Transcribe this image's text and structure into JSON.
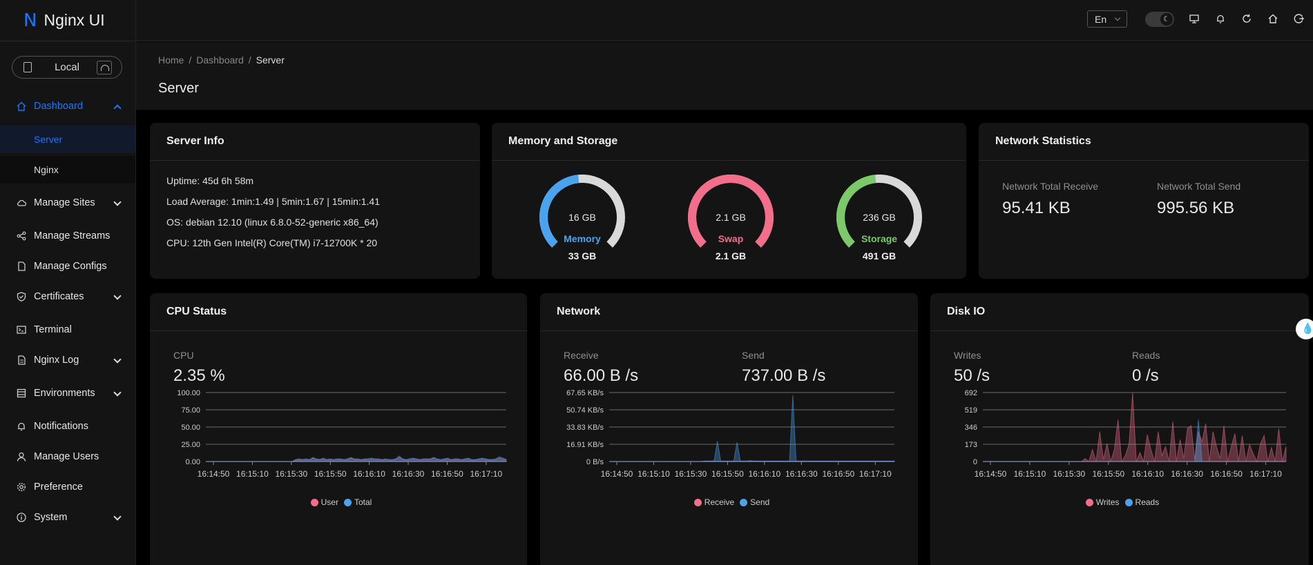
{
  "app": {
    "title": "Nginx UI",
    "logo_letter": "N"
  },
  "sidebar": {
    "env_label": "Local",
    "items": [
      {
        "label": "Dashboard",
        "icon": "home-icon",
        "active": true,
        "expandable": true,
        "open": true
      },
      {
        "label": "Manage Sites",
        "icon": "cloud-icon",
        "expandable": true
      },
      {
        "label": "Manage Streams",
        "icon": "share-icon"
      },
      {
        "label": "Manage Configs",
        "icon": "file-icon"
      },
      {
        "label": "Certificates",
        "icon": "shield-icon",
        "expandable": true
      },
      {
        "label": "Terminal",
        "icon": "terminal-icon"
      },
      {
        "label": "Nginx Log",
        "icon": "log-icon",
        "expandable": true
      },
      {
        "label": "Environments",
        "icon": "database-icon",
        "expandable": true
      },
      {
        "label": "Notifications",
        "icon": "bell-icon"
      },
      {
        "label": "Manage Users",
        "icon": "user-icon"
      },
      {
        "label": "Preference",
        "icon": "gear-icon"
      },
      {
        "label": "System",
        "icon": "info-icon",
        "expandable": true
      }
    ],
    "dashboard_sub": [
      {
        "label": "Server",
        "selected": true
      },
      {
        "label": "Nginx"
      }
    ]
  },
  "header": {
    "language": "En"
  },
  "breadcrumb": {
    "home": "Home",
    "dashboard": "Dashboard",
    "current": "Server",
    "sep": "/"
  },
  "page_title": "Server",
  "server_info": {
    "title": "Server Info",
    "uptime": "Uptime: 45d 6h 58m",
    "load": "Load Average: 1min:1.49 | 5min:1.67 | 15min:1.41",
    "os": "OS: debian 12.10 (linux 6.8.0-52-generic x86_64)",
    "cpu": "CPU: 12th Gen Intel(R) Core(TM) i7-12700K * 20"
  },
  "memory_storage": {
    "title": "Memory and Storage",
    "gauges": [
      {
        "name": "Memory",
        "used": "16 GB",
        "total": "33 GB",
        "percent": 48,
        "color": "#4ba3f0"
      },
      {
        "name": "Swap",
        "used": "2.1 GB",
        "total": "2.1 GB",
        "percent": 100,
        "color": "#f26e8b"
      },
      {
        "name": "Storage",
        "used": "236 GB",
        "total": "491 GB",
        "percent": 48,
        "color": "#7cc96a"
      }
    ]
  },
  "network_stats": {
    "title": "Network Statistics",
    "receive_label": "Network Total Receive",
    "receive_value": "95.41 KB",
    "send_label": "Network Total Send",
    "send_value": "995.56 KB"
  },
  "cpu_card": {
    "title": "CPU Status",
    "label": "CPU",
    "value": "2.35 %",
    "legend": [
      {
        "name": "User",
        "color": "#f26e8b"
      },
      {
        "name": "Total",
        "color": "#4ba3f0"
      }
    ]
  },
  "network_card": {
    "title": "Network",
    "receive_label": "Receive",
    "receive_value": "66.00 B /s",
    "send_label": "Send",
    "send_value": "737.00 B /s",
    "legend": [
      {
        "name": "Receive",
        "color": "#f26e8b"
      },
      {
        "name": "Send",
        "color": "#4ba3f0"
      }
    ]
  },
  "disk_card": {
    "title": "Disk IO",
    "writes_label": "Writes",
    "writes_value": "50 /s",
    "reads_label": "Reads",
    "reads_value": "0 /s",
    "legend": [
      {
        "name": "Writes",
        "color": "#f26e8b"
      },
      {
        "name": "Reads",
        "color": "#4ba3f0"
      }
    ]
  },
  "chart_data": [
    {
      "type": "area",
      "name": "cpu",
      "x_ticks": [
        "16:14:50",
        "16:15:10",
        "16:15:30",
        "16:15:50",
        "16:16:10",
        "16:16:30",
        "16:16:50",
        "16:17:10"
      ],
      "y_ticks": [
        "100.00",
        "75.00",
        "50.00",
        "25.00",
        "0.00"
      ],
      "ylim": [
        0,
        100
      ],
      "series": [
        {
          "name": "User",
          "color": "#f26e8b",
          "values": [
            0,
            0,
            0,
            0,
            0,
            0,
            0,
            0,
            0,
            0,
            0,
            0,
            0,
            0,
            0,
            0,
            0,
            0,
            0,
            0,
            0,
            0,
            0,
            0,
            0,
            0,
            2,
            3,
            2,
            3,
            2,
            5,
            3,
            3,
            4,
            2,
            3,
            2,
            3,
            3,
            2,
            3,
            5,
            3,
            3,
            2,
            3,
            3,
            4,
            3,
            3,
            2,
            3,
            2,
            2,
            3,
            6,
            3,
            2,
            3,
            4,
            3,
            2,
            3,
            3,
            3,
            5,
            3,
            2,
            3,
            4,
            2,
            3,
            3,
            2,
            3,
            4,
            2,
            2,
            3,
            4,
            3,
            2,
            2,
            3,
            5,
            4,
            2
          ]
        },
        {
          "name": "Total",
          "color": "#4ba3f0",
          "values": [
            0,
            0,
            0,
            0,
            0,
            0,
            0,
            0,
            0,
            0,
            0,
            0,
            0,
            0,
            0,
            0,
            0,
            0,
            0,
            0,
            0,
            0,
            0,
            0,
            0,
            0,
            3,
            4,
            3,
            4,
            3,
            6,
            4,
            3,
            5,
            3,
            4,
            3,
            4,
            4,
            3,
            4,
            6,
            4,
            4,
            3,
            4,
            4,
            5,
            4,
            4,
            3,
            4,
            3,
            3,
            4,
            8,
            4,
            3,
            4,
            5,
            4,
            3,
            4,
            4,
            4,
            6,
            4,
            3,
            4,
            5,
            3,
            4,
            4,
            3,
            4,
            5,
            3,
            3,
            4,
            5,
            4,
            3,
            3,
            4,
            7,
            5,
            3
          ]
        }
      ]
    },
    {
      "type": "area",
      "name": "network",
      "x_ticks": [
        "16:14:50",
        "16:15:10",
        "16:15:30",
        "16:15:50",
        "16:16:10",
        "16:16:30",
        "16:16:50",
        "16:17:10"
      ],
      "y_ticks": [
        "67.65 KB/s",
        "50.74 KB/s",
        "33.83 KB/s",
        "16.91 KB/s",
        "0 B/s"
      ],
      "ylim": [
        0,
        67.65
      ],
      "series": [
        {
          "name": "Receive",
          "color": "#f26e8b",
          "values": [
            0,
            0,
            0,
            0,
            0,
            0,
            0,
            0,
            0,
            0,
            0,
            0,
            0,
            0,
            0,
            0,
            0,
            0,
            0,
            0,
            0,
            0,
            0,
            0,
            0,
            0,
            0,
            0,
            0,
            0.3,
            0.3,
            0.3,
            0.3,
            0.3,
            0.3,
            0.3,
            0.3,
            0.3,
            0.3,
            0.3,
            0.3,
            0.3,
            0.3,
            0.3,
            0.3,
            0.3,
            0.3,
            0.3,
            0.3,
            0.3,
            0.3,
            0.3,
            0.3,
            0.3,
            0.3,
            0.3,
            0.3,
            0.3,
            0.3,
            0.3,
            0.3,
            0.3,
            0.3,
            0.3,
            0.3,
            0.3,
            0.3,
            0.3,
            0.3,
            0.3,
            0.3,
            0.3,
            0.3,
            0.3,
            0.3,
            0.3,
            0.3,
            0.3,
            0.3,
            0.3,
            0.3,
            0.3,
            0.3,
            0.3,
            0.3,
            0.3,
            0.3,
            0.3
          ]
        },
        {
          "name": "Send",
          "color": "#4ba3f0",
          "values": [
            0,
            0,
            0,
            0,
            0,
            0,
            0,
            0,
            0,
            0,
            0,
            0,
            0,
            0,
            0,
            0,
            0,
            0,
            0,
            0,
            0,
            0,
            0,
            0,
            0,
            0,
            0,
            0,
            0,
            0.5,
            0.5,
            0.5,
            0.8,
            20,
            0.5,
            0.5,
            0.5,
            0.5,
            0.5,
            19,
            0.5,
            0.5,
            0.5,
            1,
            0.5,
            0.5,
            0.5,
            0.5,
            0.5,
            0.5,
            0.5,
            0.5,
            0.5,
            0.5,
            0.5,
            0.5,
            65,
            0.5,
            0.5,
            0.5,
            0.5,
            0.5,
            0.5,
            0.5,
            0.5,
            0.5,
            0.5,
            0.5,
            0.5,
            0.5,
            0.5,
            0.5,
            0.5,
            0.5,
            0.5,
            0.5,
            0.5,
            0.5,
            0.5,
            0.5,
            0.5,
            0.5,
            0.5,
            0.5,
            0.5,
            0.5,
            0.5,
            0.5
          ]
        }
      ]
    },
    {
      "type": "area",
      "name": "disk",
      "x_ticks": [
        "16:14:50",
        "16:15:10",
        "16:15:30",
        "16:15:50",
        "16:16:10",
        "16:16:30",
        "16:16:50",
        "16:17:10"
      ],
      "y_ticks": [
        "692",
        "519",
        "346",
        "173",
        "0"
      ],
      "ylim": [
        0,
        692
      ],
      "series": [
        {
          "name": "Writes",
          "color": "#f26e8b",
          "values": [
            0,
            0,
            0,
            0,
            0,
            0,
            0,
            0,
            0,
            0,
            0,
            0,
            0,
            0,
            0,
            0,
            0,
            0,
            0,
            0,
            0,
            0,
            0,
            0,
            0,
            0,
            0,
            0,
            30,
            0,
            120,
            0,
            300,
            20,
            180,
            0,
            120,
            420,
            0,
            60,
            170,
            690,
            0,
            90,
            0,
            270,
            120,
            0,
            300,
            60,
            150,
            0,
            400,
            0,
            220,
            30,
            330,
            360,
            20,
            300,
            200,
            380,
            0,
            300,
            140,
            30,
            360,
            0,
            150,
            280,
            0,
            260,
            0,
            170,
            80,
            0,
            180,
            260,
            0,
            140,
            0,
            330,
            0,
            150
          ]
        },
        {
          "name": "Reads",
          "color": "#4ba3f0",
          "values": [
            0,
            0,
            0,
            0,
            0,
            0,
            0,
            0,
            0,
            0,
            0,
            0,
            0,
            0,
            0,
            0,
            0,
            0,
            0,
            0,
            0,
            0,
            0,
            0,
            0,
            0,
            0,
            0,
            0,
            0,
            0,
            0,
            0,
            0,
            0,
            0,
            0,
            0,
            0,
            0,
            0,
            0,
            0,
            0,
            0,
            0,
            0,
            0,
            0,
            0,
            0,
            0,
            0,
            0,
            0,
            0,
            0,
            0,
            0,
            420,
            0,
            0,
            0,
            0,
            0,
            0,
            0,
            0,
            0,
            0,
            0,
            0,
            0,
            0,
            0,
            0,
            0,
            0,
            0,
            0,
            0,
            0,
            0,
            0
          ]
        }
      ]
    }
  ]
}
